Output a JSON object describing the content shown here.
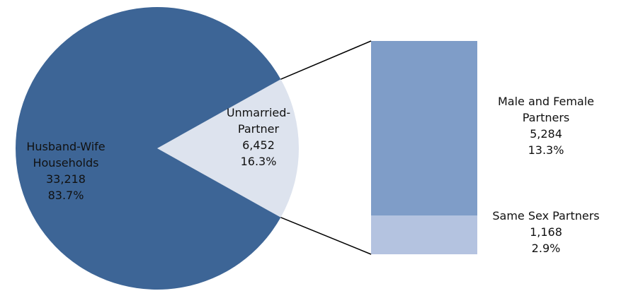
{
  "chart_data": {
    "type": "pie-of-bar",
    "categories": [
      "Husband-Wife Households",
      "Unmarried-Partner"
    ],
    "values": [
      33218,
      6452
    ],
    "value_labels": [
      "33,218",
      "6,452"
    ],
    "percents": [
      83.7,
      16.3
    ],
    "percent_labels": [
      "83.7%",
      "16.3%"
    ],
    "colors": [
      "#3d6596",
      "#dde3ee"
    ],
    "breakdown": {
      "categories": [
        "Male and Female Partners",
        "Same Sex Partners"
      ],
      "values": [
        5284,
        1168
      ],
      "value_labels": [
        "5,284",
        "1,168"
      ],
      "percents": [
        13.3,
        2.9
      ],
      "percent_labels": [
        "13.3%",
        "2.9%"
      ],
      "colors": [
        "#7f9dc8",
        "#b4c3e0"
      ]
    }
  }
}
